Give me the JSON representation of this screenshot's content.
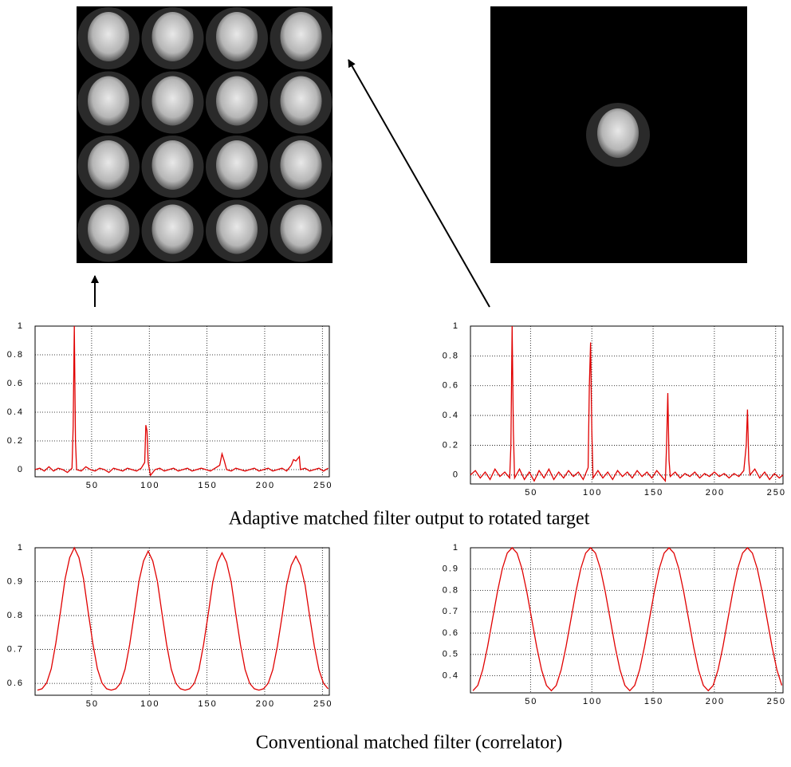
{
  "chart_data": [
    {
      "type": "line",
      "color": "#e00000",
      "xlim": [
        1,
        256
      ],
      "ylim": [
        -0.05,
        1
      ],
      "xticks": [
        50,
        100,
        150,
        200,
        250
      ],
      "yticks": [
        0,
        0.2,
        0.4,
        0.6,
        0.8,
        1
      ],
      "grid": true,
      "x": [
        1,
        5,
        9,
        13,
        17,
        21,
        25,
        29,
        33,
        34,
        35,
        36,
        37,
        41,
        45,
        49,
        53,
        57,
        61,
        65,
        69,
        73,
        77,
        81,
        85,
        89,
        93,
        96,
        97,
        98,
        99,
        101,
        105,
        109,
        113,
        117,
        121,
        125,
        129,
        133,
        137,
        141,
        145,
        149,
        153,
        157,
        161,
        163,
        165,
        167,
        171,
        175,
        179,
        183,
        187,
        191,
        195,
        199,
        203,
        207,
        211,
        215,
        219,
        223,
        225,
        227,
        229,
        230,
        231,
        235,
        239,
        243,
        247,
        251,
        255
      ],
      "values": [
        0,
        0.01,
        -0.01,
        0.02,
        -0.01,
        0.01,
        0,
        -0.02,
        0.01,
        0.3,
        1,
        0.2,
        0,
        -0.01,
        0.02,
        0,
        -0.01,
        0.01,
        0,
        -0.02,
        0.01,
        0,
        -0.01,
        0.01,
        0,
        -0.01,
        0.01,
        0.05,
        0.31,
        0.27,
        0.05,
        -0.04,
        0,
        0.01,
        -0.01,
        0,
        0.01,
        -0.01,
        0,
        0.01,
        -0.01,
        0,
        0.01,
        0,
        -0.01,
        0.01,
        0.03,
        0.11,
        0.06,
        0,
        -0.01,
        0.01,
        0,
        -0.01,
        0,
        0.01,
        -0.01,
        0,
        0.01,
        -0.01,
        0,
        0.01,
        -0.01,
        0.03,
        0.07,
        0.06,
        0.08,
        0.09,
        0,
        0.01,
        -0.01,
        0,
        0.01,
        -0.01,
        0.01
      ]
    },
    {
      "type": "line",
      "color": "#e00000",
      "xlim": [
        1,
        256
      ],
      "ylim": [
        -0.06,
        1
      ],
      "xticks": [
        50,
        100,
        150,
        200,
        250
      ],
      "yticks": [
        0,
        0.2,
        0.4,
        0.6,
        0.8,
        1
      ],
      "grid": true,
      "x": [
        1,
        5,
        9,
        13,
        17,
        21,
        25,
        29,
        33,
        34,
        35,
        36,
        37,
        41,
        45,
        49,
        53,
        57,
        61,
        65,
        69,
        73,
        77,
        81,
        85,
        89,
        93,
        97,
        98,
        99,
        100,
        101,
        105,
        109,
        113,
        117,
        121,
        125,
        129,
        133,
        137,
        141,
        145,
        149,
        153,
        157,
        160,
        161,
        162,
        163,
        164,
        168,
        172,
        176,
        180,
        184,
        188,
        192,
        196,
        200,
        204,
        208,
        212,
        216,
        220,
        224,
        226,
        227,
        228,
        229,
        233,
        237,
        241,
        245,
        249,
        253,
        256
      ],
      "values": [
        0,
        0.03,
        -0.02,
        0.02,
        -0.03,
        0.04,
        -0.01,
        0.02,
        -0.02,
        0.2,
        1,
        0.3,
        -0.02,
        0.04,
        -0.03,
        0.02,
        -0.04,
        0.03,
        -0.02,
        0.04,
        -0.03,
        0.02,
        -0.02,
        0.03,
        -0.01,
        0.02,
        -0.03,
        0.05,
        0.6,
        0.89,
        0.3,
        -0.02,
        0.03,
        -0.02,
        0.02,
        -0.03,
        0.03,
        -0.01,
        0.02,
        -0.02,
        0.03,
        -0.01,
        0.02,
        -0.02,
        0.03,
        -0.01,
        -0.04,
        0.2,
        0.55,
        0.1,
        -0.01,
        0.02,
        -0.02,
        0.01,
        -0.01,
        0.02,
        -0.02,
        0.01,
        -0.01,
        0.02,
        -0.01,
        0.01,
        -0.02,
        0.01,
        -0.01,
        0.03,
        0.2,
        0.44,
        0.1,
        0,
        0.04,
        -0.02,
        0.02,
        -0.03,
        0.01,
        -0.02,
        0
      ]
    },
    {
      "type": "line",
      "color": "#e00000",
      "xlim": [
        1,
        256
      ],
      "ylim": [
        0.565,
        1
      ],
      "xticks": [
        50,
        100,
        150,
        200,
        250
      ],
      "yticks": [
        0.6,
        0.7,
        0.8,
        0.9,
        1
      ],
      "grid": true,
      "x": [
        3,
        7,
        11,
        15,
        19,
        23,
        27,
        31,
        35,
        39,
        43,
        47,
        51,
        55,
        59,
        63,
        67,
        71,
        75,
        79,
        83,
        87,
        91,
        95,
        99,
        103,
        107,
        111,
        115,
        119,
        123,
        127,
        131,
        135,
        139,
        143,
        147,
        151,
        155,
        159,
        163,
        167,
        171,
        175,
        179,
        183,
        187,
        191,
        195,
        199,
        203,
        207,
        211,
        215,
        219,
        223,
        227,
        231,
        235,
        239,
        243,
        247,
        251,
        255
      ],
      "values": [
        0.58,
        0.584,
        0.601,
        0.643,
        0.719,
        0.811,
        0.908,
        0.971,
        1,
        0.971,
        0.908,
        0.811,
        0.719,
        0.643,
        0.601,
        0.584,
        0.58,
        0.584,
        0.6,
        0.642,
        0.715,
        0.806,
        0.901,
        0.961,
        0.99,
        0.961,
        0.901,
        0.806,
        0.715,
        0.642,
        0.6,
        0.584,
        0.58,
        0.584,
        0.6,
        0.641,
        0.714,
        0.803,
        0.898,
        0.957,
        0.985,
        0.957,
        0.898,
        0.803,
        0.714,
        0.641,
        0.6,
        0.584,
        0.58,
        0.584,
        0.6,
        0.64,
        0.71,
        0.797,
        0.89,
        0.948,
        0.975,
        0.948,
        0.89,
        0.797,
        0.71,
        0.64,
        0.6,
        0.584
      ]
    },
    {
      "type": "line",
      "color": "#e00000",
      "xlim": [
        1,
        256
      ],
      "ylim": [
        0.32,
        1
      ],
      "xticks": [
        50,
        100,
        150,
        200,
        250
      ],
      "yticks": [
        0.4,
        0.5,
        0.6,
        0.7,
        0.8,
        0.9,
        1
      ],
      "grid": true,
      "x": [
        3,
        7,
        11,
        15,
        19,
        23,
        27,
        31,
        35,
        39,
        43,
        47,
        51,
        55,
        59,
        63,
        67,
        71,
        75,
        79,
        83,
        87,
        91,
        95,
        99,
        103,
        107,
        111,
        115,
        119,
        123,
        127,
        131,
        135,
        139,
        143,
        147,
        151,
        155,
        159,
        163,
        167,
        171,
        175,
        179,
        183,
        187,
        191,
        195,
        199,
        203,
        207,
        211,
        215,
        219,
        223,
        227,
        231,
        235,
        239,
        243,
        247,
        251,
        255
      ],
      "values": [
        0.33,
        0.355,
        0.428,
        0.537,
        0.665,
        0.793,
        0.902,
        0.975,
        1,
        0.975,
        0.902,
        0.793,
        0.665,
        0.537,
        0.428,
        0.355,
        0.33,
        0.355,
        0.428,
        0.537,
        0.665,
        0.793,
        0.902,
        0.975,
        1,
        0.975,
        0.902,
        0.793,
        0.665,
        0.537,
        0.428,
        0.355,
        0.33,
        0.355,
        0.428,
        0.537,
        0.665,
        0.793,
        0.902,
        0.975,
        1,
        0.975,
        0.902,
        0.793,
        0.665,
        0.537,
        0.428,
        0.355,
        0.33,
        0.355,
        0.428,
        0.537,
        0.665,
        0.793,
        0.902,
        0.975,
        1,
        0.975,
        0.902,
        0.793,
        0.665,
        0.537,
        0.428,
        0.355
      ]
    }
  ],
  "captions": [
    "Adaptive matched filter output to rotated target",
    "Conventional matched filter (correlator)"
  ]
}
